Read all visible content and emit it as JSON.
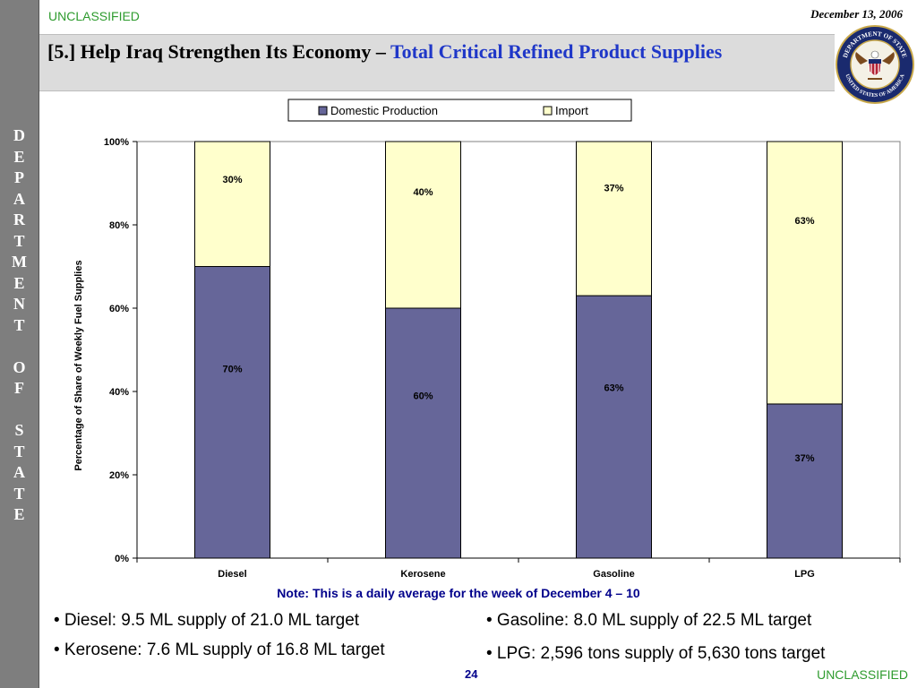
{
  "header": {
    "classification_top": "UNCLASSIFIED",
    "date": "December 13, 2006",
    "title_prefix": "[5.] Help Iraq Strengthen Its Economy – ",
    "title_highlight": "Total Critical Refined Product Supplies"
  },
  "sidebar": {
    "text": "DEPARTMENT OF STATE"
  },
  "seal": {
    "icon": "department-of-state-seal-icon",
    "ring_text_top": "DEPARTMENT OF STATE",
    "ring_text_bottom": "UNITED STATES OF AMERICA"
  },
  "chart_data": {
    "type": "bar",
    "stacked": "percent",
    "categories": [
      "Diesel",
      "Kerosene",
      "Gasoline",
      "LPG"
    ],
    "series": [
      {
        "name": "Domestic Production",
        "values": [
          70,
          60,
          63,
          37
        ],
        "labels": [
          "70%",
          "60%",
          "63%",
          "37%"
        ],
        "color": "#666699"
      },
      {
        "name": "Import",
        "values": [
          30,
          40,
          37,
          63
        ],
        "labels": [
          "30%",
          "40%",
          "37%",
          "63%"
        ],
        "color": "#ffffcc"
      }
    ],
    "ylabel": "Percentage of Share of Weekly Fuel Supplies",
    "xlabel": "",
    "ylim": [
      0,
      100
    ],
    "yticks": [
      "0%",
      "20%",
      "40%",
      "60%",
      "80%",
      "100%"
    ],
    "legend_position": "top",
    "grid": false
  },
  "note": "Note: This is a daily average for the week of December 4 – 10",
  "bullets": [
    "• Diesel: 9.5 ML supply of 21.0 ML target",
    "• Kerosene: 7.6 ML supply of 16.8 ML target",
    "• Gasoline: 8.0 ML supply of 22.5 ML target",
    "• LPG: 2,596 tons supply of 5,630 tons target"
  ],
  "footer": {
    "page_number": "24",
    "classification_bottom": "UNCLASSIFIED"
  }
}
